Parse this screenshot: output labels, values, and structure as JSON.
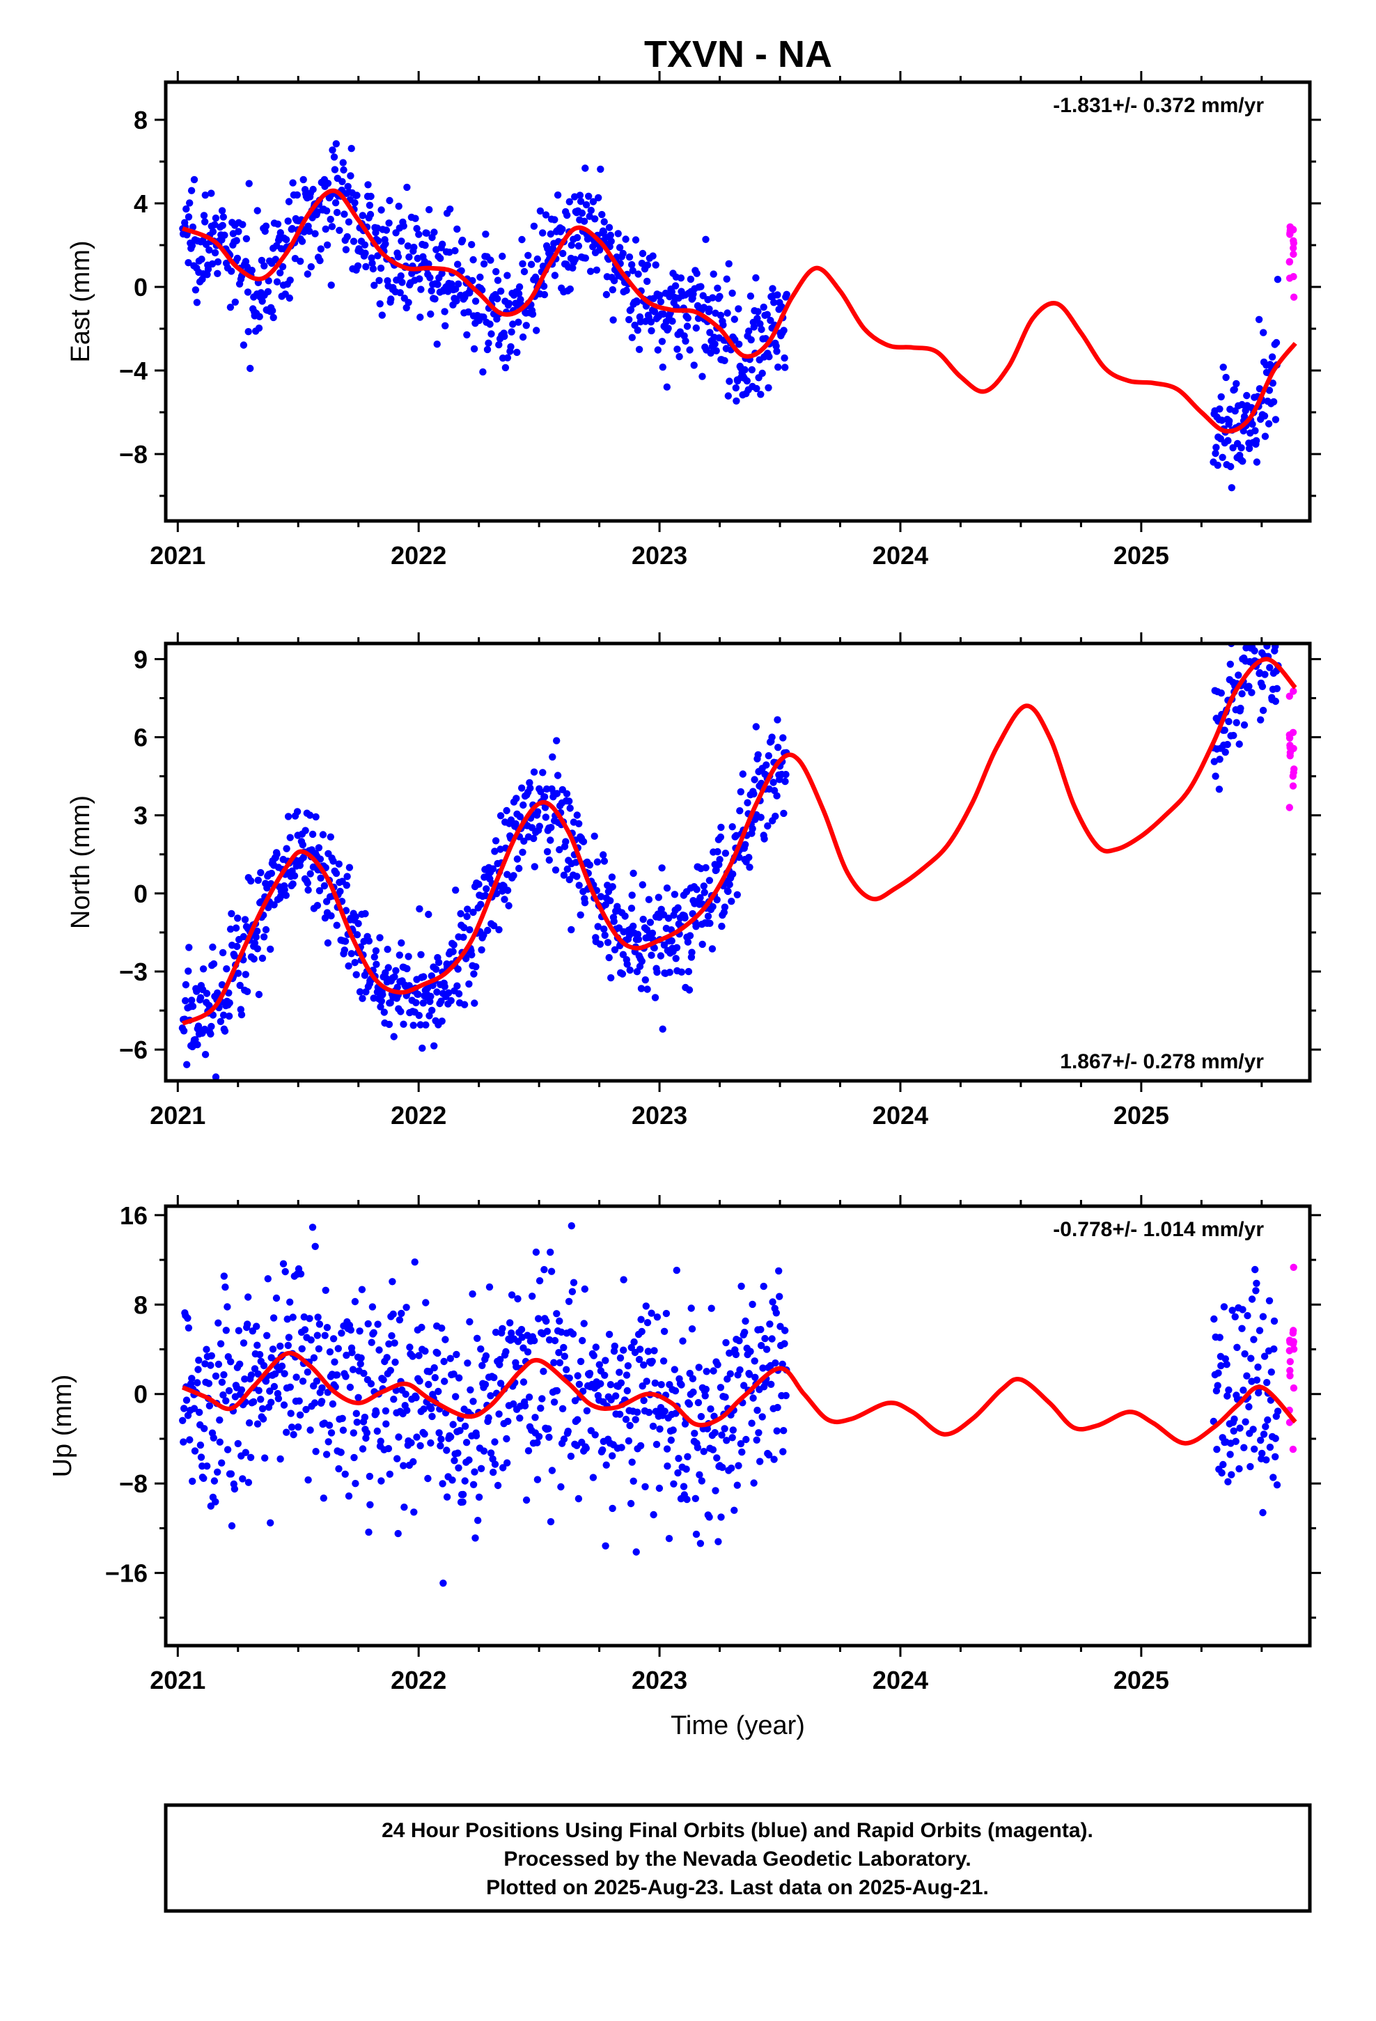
{
  "title": "TXVN - NA",
  "colors": {
    "final_orbits": "#0000ff",
    "rapid_orbits": "#ff00ff",
    "model_fit": "#ff0000",
    "frame": "#000000"
  },
  "chart_data": [
    {
      "type": "scatter",
      "panel": "East",
      "ylabel": "East (mm)",
      "xlabel": "",
      "xlim": [
        2020.95,
        2025.7
      ],
      "ylim": [
        -11.2,
        9.8
      ],
      "xticks": [
        2021,
        2022,
        2023,
        2024,
        2025
      ],
      "yticks": [
        -8,
        -4,
        0,
        4,
        8
      ],
      "ytick_labels": [
        "−8",
        "−4",
        "0",
        "4",
        "8"
      ],
      "rate_label": "-1.831+/- 0.372 mm/yr",
      "rate_position": "top-right",
      "rate_mm_per_yr": -1.831,
      "rate_sigma": 0.372,
      "final_segments": [
        [
          2021.02,
          2023.53
        ],
        [
          2025.3,
          2025.57
        ]
      ],
      "rapid_segment": [
        2025.57,
        2025.64
      ],
      "model_curve": [
        [
          2021.02,
          2.8
        ],
        [
          2021.15,
          2.2
        ],
        [
          2021.25,
          0.9
        ],
        [
          2021.35,
          0.4
        ],
        [
          2021.45,
          1.6
        ],
        [
          2021.55,
          3.6
        ],
        [
          2021.65,
          4.6
        ],
        [
          2021.75,
          3.2
        ],
        [
          2021.85,
          1.6
        ],
        [
          2021.95,
          0.9
        ],
        [
          2022.05,
          0.9
        ],
        [
          2022.15,
          0.7
        ],
        [
          2022.25,
          -0.3
        ],
        [
          2022.35,
          -1.3
        ],
        [
          2022.45,
          -0.8
        ],
        [
          2022.55,
          1.2
        ],
        [
          2022.65,
          2.8
        ],
        [
          2022.75,
          2.2
        ],
        [
          2022.85,
          0.6
        ],
        [
          2022.95,
          -0.7
        ],
        [
          2023.05,
          -1.1
        ],
        [
          2023.15,
          -1.2
        ],
        [
          2023.25,
          -2.0
        ],
        [
          2023.35,
          -3.3
        ],
        [
          2023.45,
          -2.7
        ],
        [
          2023.55,
          -0.5
        ],
        [
          2023.65,
          0.9
        ],
        [
          2023.75,
          -0.2
        ],
        [
          2023.85,
          -2.0
        ],
        [
          2023.95,
          -2.8
        ],
        [
          2024.05,
          -2.9
        ],
        [
          2024.15,
          -3.1
        ],
        [
          2024.25,
          -4.3
        ],
        [
          2024.35,
          -5.0
        ],
        [
          2024.45,
          -3.8
        ],
        [
          2024.55,
          -1.5
        ],
        [
          2024.65,
          -0.8
        ],
        [
          2024.75,
          -2.2
        ],
        [
          2024.85,
          -3.9
        ],
        [
          2024.95,
          -4.5
        ],
        [
          2025.05,
          -4.6
        ],
        [
          2025.15,
          -4.9
        ],
        [
          2025.25,
          -6.0
        ],
        [
          2025.35,
          -6.9
        ],
        [
          2025.45,
          -6.3
        ],
        [
          2025.55,
          -4.0
        ],
        [
          2025.64,
          -2.7
        ]
      ]
    },
    {
      "type": "scatter",
      "panel": "North",
      "ylabel": "North (mm)",
      "xlabel": "",
      "xlim": [
        2020.95,
        2025.7
      ],
      "ylim": [
        -7.2,
        9.6
      ],
      "xticks": [
        2021,
        2022,
        2023,
        2024,
        2025
      ],
      "yticks": [
        -6,
        -3,
        0,
        3,
        6,
        9
      ],
      "ytick_labels": [
        "−6",
        "−3",
        "0",
        "3",
        "6",
        "9"
      ],
      "rate_label": "1.867+/- 0.278 mm/yr",
      "rate_position": "bottom-right",
      "rate_mm_per_yr": 1.867,
      "rate_sigma": 0.278,
      "final_segments": [
        [
          2021.02,
          2023.53
        ],
        [
          2025.3,
          2025.57
        ]
      ],
      "rapid_segment": [
        2025.57,
        2025.64
      ],
      "model_curve": [
        [
          2021.02,
          -5.0
        ],
        [
          2021.15,
          -4.4
        ],
        [
          2021.25,
          -2.6
        ],
        [
          2021.35,
          -0.6
        ],
        [
          2021.45,
          1.0
        ],
        [
          2021.52,
          1.6
        ],
        [
          2021.62,
          0.6
        ],
        [
          2021.72,
          -1.6
        ],
        [
          2021.82,
          -3.3
        ],
        [
          2021.92,
          -3.8
        ],
        [
          2022.02,
          -3.5
        ],
        [
          2022.12,
          -3.0
        ],
        [
          2022.22,
          -1.8
        ],
        [
          2022.32,
          0.4
        ],
        [
          2022.42,
          2.5
        ],
        [
          2022.52,
          3.5
        ],
        [
          2022.62,
          2.4
        ],
        [
          2022.72,
          0.1
        ],
        [
          2022.82,
          -1.6
        ],
        [
          2022.9,
          -2.1
        ],
        [
          2023.0,
          -1.8
        ],
        [
          2023.1,
          -1.3
        ],
        [
          2023.2,
          -0.4
        ],
        [
          2023.3,
          1.2
        ],
        [
          2023.4,
          3.4
        ],
        [
          2023.5,
          5.1
        ],
        [
          2023.58,
          5.1
        ],
        [
          2023.68,
          3.2
        ],
        [
          2023.78,
          0.8
        ],
        [
          2023.88,
          -0.2
        ],
        [
          2023.98,
          0.2
        ],
        [
          2024.1,
          1.0
        ],
        [
          2024.2,
          1.9
        ],
        [
          2024.3,
          3.5
        ],
        [
          2024.4,
          5.6
        ],
        [
          2024.52,
          7.2
        ],
        [
          2024.62,
          6.0
        ],
        [
          2024.72,
          3.4
        ],
        [
          2024.82,
          1.8
        ],
        [
          2024.9,
          1.7
        ],
        [
          2025.0,
          2.2
        ],
        [
          2025.1,
          3.0
        ],
        [
          2025.2,
          4.0
        ],
        [
          2025.3,
          5.8
        ],
        [
          2025.4,
          7.9
        ],
        [
          2025.52,
          9.0
        ],
        [
          2025.64,
          7.9
        ]
      ]
    },
    {
      "type": "scatter",
      "panel": "Up",
      "ylabel": "Up (mm)",
      "xlabel": "Time (year)",
      "xlim": [
        2020.95,
        2025.7
      ],
      "ylim": [
        -22.5,
        16.8
      ],
      "xticks": [
        2021,
        2022,
        2023,
        2024,
        2025
      ],
      "yticks": [
        -16,
        -8,
        0,
        8,
        16
      ],
      "ytick_labels": [
        "−16",
        "−8",
        "0",
        "8",
        "16"
      ],
      "rate_label": "-0.778+/- 1.014 mm/yr",
      "rate_position": "top-right",
      "rate_mm_per_yr": -0.778,
      "rate_sigma": 1.014,
      "final_segments": [
        [
          2021.02,
          2023.53
        ],
        [
          2025.3,
          2025.57
        ]
      ],
      "rapid_segment": [
        2025.57,
        2025.64
      ],
      "model_curve": [
        [
          2021.02,
          0.6
        ],
        [
          2021.12,
          -0.3
        ],
        [
          2021.22,
          -1.3
        ],
        [
          2021.32,
          0.8
        ],
        [
          2021.45,
          3.6
        ],
        [
          2021.55,
          2.5
        ],
        [
          2021.65,
          0.2
        ],
        [
          2021.75,
          -0.8
        ],
        [
          2021.85,
          0.2
        ],
        [
          2021.95,
          0.9
        ],
        [
          2022.05,
          -0.5
        ],
        [
          2022.2,
          -2.0
        ],
        [
          2022.3,
          -1.0
        ],
        [
          2022.42,
          2.0
        ],
        [
          2022.5,
          3.0
        ],
        [
          2022.62,
          1.0
        ],
        [
          2022.72,
          -1.0
        ],
        [
          2022.82,
          -1.2
        ],
        [
          2022.95,
          0.0
        ],
        [
          2023.05,
          -0.8
        ],
        [
          2023.15,
          -2.7
        ],
        [
          2023.25,
          -2.2
        ],
        [
          2023.35,
          -0.2
        ],
        [
          2023.5,
          2.3
        ],
        [
          2023.6,
          0.0
        ],
        [
          2023.7,
          -2.3
        ],
        [
          2023.8,
          -2.2
        ],
        [
          2023.95,
          -0.8
        ],
        [
          2024.05,
          -1.6
        ],
        [
          2024.18,
          -3.6
        ],
        [
          2024.3,
          -2.2
        ],
        [
          2024.42,
          0.4
        ],
        [
          2024.5,
          1.3
        ],
        [
          2024.62,
          -0.8
        ],
        [
          2024.72,
          -3.0
        ],
        [
          2024.82,
          -2.8
        ],
        [
          2024.95,
          -1.6
        ],
        [
          2025.05,
          -2.6
        ],
        [
          2025.18,
          -4.4
        ],
        [
          2025.3,
          -3.0
        ],
        [
          2025.4,
          -1.0
        ],
        [
          2025.5,
          0.6
        ],
        [
          2025.64,
          -2.5
        ]
      ]
    }
  ],
  "footer": {
    "line1": "24 Hour Positions Using Final Orbits (blue) and Rapid Orbits (magenta).",
    "line2": "Processed by the Nevada Geodetic Laboratory.",
    "line3": "Plotted on 2025-Aug-23. Last data on 2025-Aug-21."
  }
}
